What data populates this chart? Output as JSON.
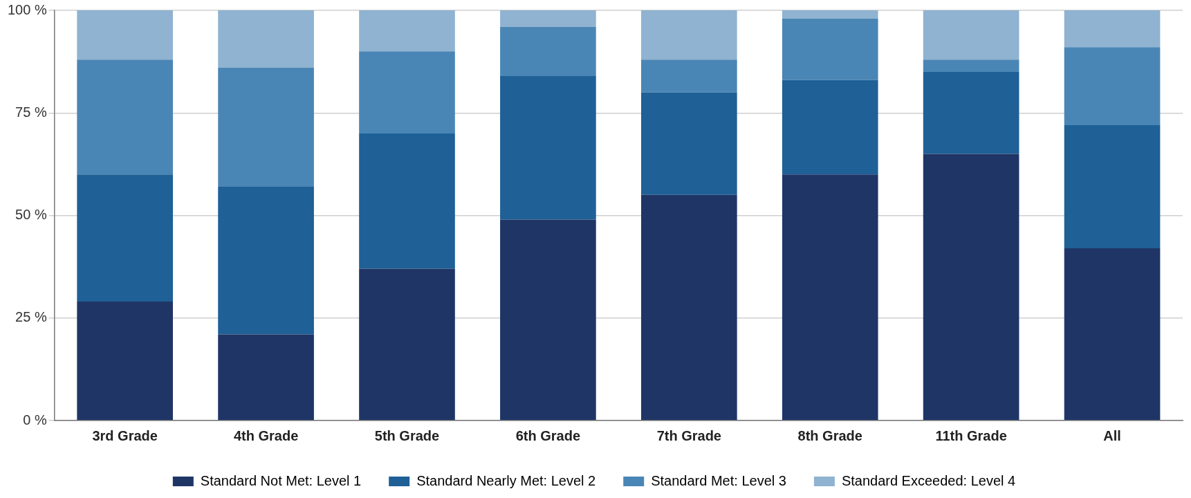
{
  "chart_data": {
    "type": "bar",
    "stacked": true,
    "categories": [
      "3rd Grade",
      "4th Grade",
      "5th Grade",
      "6th Grade",
      "7th Grade",
      "8th Grade",
      "11th Grade",
      "All"
    ],
    "series": [
      {
        "name": "Standard Not Met: Level 1",
        "color": "#1f3566",
        "values": [
          29,
          21,
          37,
          49,
          55,
          60,
          65,
          42
        ]
      },
      {
        "name": "Standard Nearly Met: Level 2",
        "color": "#1f6096",
        "values": [
          31,
          36,
          33,
          35,
          25,
          23,
          20,
          30
        ]
      },
      {
        "name": "Standard Met: Level 3",
        "color": "#4a86b5",
        "values": [
          28,
          29,
          20,
          12,
          8,
          15,
          3,
          19
        ]
      },
      {
        "name": "Standard Exceeded: Level 4",
        "color": "#8fb3d1",
        "values": [
          12,
          14,
          10,
          4,
          12,
          2,
          12,
          9
        ]
      }
    ],
    "ylim": [
      0,
      100
    ],
    "yticks": [
      {
        "value": 0,
        "label": "0 %"
      },
      {
        "value": 25,
        "label": "25 %"
      },
      {
        "value": 50,
        "label": "50 %"
      },
      {
        "value": 75,
        "label": "75 %"
      },
      {
        "value": 100,
        "label": "100 %"
      }
    ],
    "grid": "y",
    "legend": "bottom"
  }
}
